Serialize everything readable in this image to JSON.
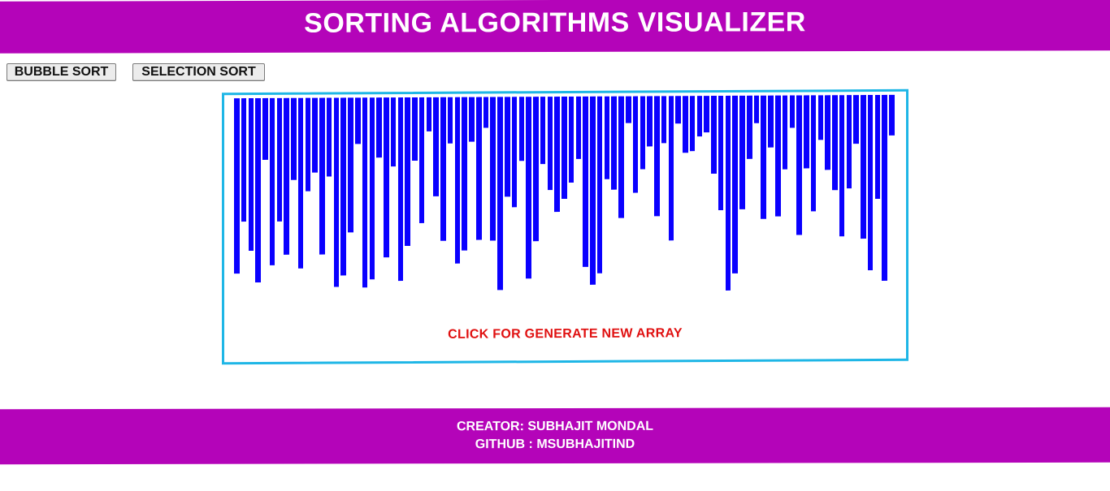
{
  "header": {
    "title": "SORTING ALGORITHMS VISUALIZER"
  },
  "controls": {
    "bubble_sort_label": "BUBBLE SORT",
    "selection_sort_label": "SELECTION SORT"
  },
  "visualizer": {
    "prompt": "CLICK FOR GENERATE NEW ARRAY",
    "bar_color": "#0a00ff",
    "border_color": "#1eb6e6",
    "max_value": 250,
    "values": [
      216,
      152,
      188,
      227,
      76,
      206,
      152,
      193,
      101,
      210,
      115,
      92,
      193,
      97,
      233,
      219,
      166,
      57,
      234,
      224,
      74,
      197,
      85,
      226,
      183,
      78,
      155,
      42,
      122,
      177,
      57,
      205,
      189,
      55,
      176,
      38,
      177,
      238,
      123,
      136,
      79,
      224,
      178,
      83,
      115,
      142,
      126,
      106,
      77,
      210,
      232,
      218,
      102,
      115,
      150,
      33,
      119,
      90,
      62,
      148,
      58,
      178,
      34,
      70,
      68,
      50,
      45,
      96,
      141,
      240,
      219,
      140,
      78,
      34,
      152,
      64,
      149,
      91,
      40,
      172,
      90,
      143,
      55,
      92,
      117,
      174,
      115,
      60,
      177,
      216,
      128,
      229,
      50
    ]
  },
  "footer": {
    "creator": "CREATOR: SUBHAJIT MONDAL",
    "github": "GITHUB : MSUBHAJITIND"
  },
  "colors": {
    "brand": "#b404b9",
    "prompt_text": "#e01010"
  }
}
